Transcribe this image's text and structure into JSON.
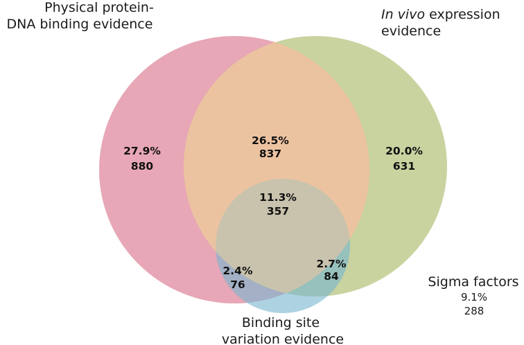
{
  "chart_data": {
    "type": "venn",
    "sets": [
      {
        "key": "physical",
        "label_lines": [
          "Physical protein-",
          "DNA binding evidence"
        ],
        "color": "#df8a9d"
      },
      {
        "key": "invivo",
        "label_lines": [
          {
            "italic": "In vivo",
            "rest": " expression"
          },
          {
            "italic": "",
            "rest": "evidence"
          }
        ],
        "color": "#b2c077"
      },
      {
        "key": "binding_site",
        "label_lines": [
          "Binding site",
          "variation evidence"
        ],
        "color": "#76b6cf"
      }
    ],
    "regions": [
      {
        "key": "physical_only",
        "sets": [
          "physical"
        ],
        "percent": "27.9%",
        "count": "880"
      },
      {
        "key": "physical_invivo",
        "sets": [
          "physical",
          "invivo"
        ],
        "percent": "26.5%",
        "count": "837"
      },
      {
        "key": "invivo_only",
        "sets": [
          "invivo"
        ],
        "percent": "20.0%",
        "count": "631"
      },
      {
        "key": "all_three",
        "sets": [
          "physical",
          "invivo",
          "binding_site"
        ],
        "percent": "11.3%",
        "count": "357"
      },
      {
        "key": "physical_binding",
        "sets": [
          "physical",
          "binding_site"
        ],
        "percent": "2.4%",
        "count": "76"
      },
      {
        "key": "invivo_binding",
        "sets": [
          "invivo",
          "binding_site"
        ],
        "percent": "2.7%",
        "count": "84"
      }
    ],
    "outside": {
      "label": "Sigma factors",
      "percent": "9.1%",
      "count": "288"
    }
  }
}
